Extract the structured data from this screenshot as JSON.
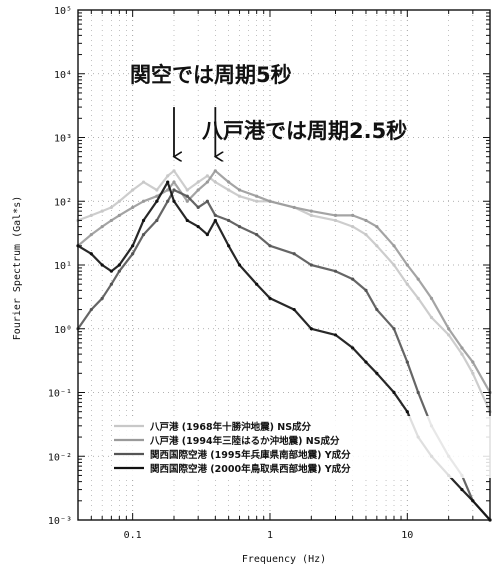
{
  "chart_data": {
    "type": "line",
    "title": "",
    "xlabel": "Frequency (Hz)",
    "ylabel": "Fourier Spectrum (Gal*s)",
    "x_scale": "log",
    "y_scale": "log",
    "xlim": [
      0.04,
      40
    ],
    "ylim": [
      0.001,
      100000
    ],
    "grid": true,
    "x_ticks": [
      {
        "value": 0.1,
        "label": "0.1"
      },
      {
        "value": 1,
        "label": "1"
      },
      {
        "value": 10,
        "label": "10"
      }
    ],
    "y_ticks": [
      {
        "value": 0.001,
        "label": "10⁻³"
      },
      {
        "value": 0.01,
        "label": "10⁻²"
      },
      {
        "value": 0.1,
        "label": "10⁻¹"
      },
      {
        "value": 1,
        "label": "10⁰"
      },
      {
        "value": 10,
        "label": "10¹"
      },
      {
        "value": 100,
        "label": "10²"
      },
      {
        "value": 1000,
        "label": "10³"
      },
      {
        "value": 10000,
        "label": "10⁴"
      },
      {
        "value": 100000,
        "label": "10⁵"
      }
    ],
    "annotations": [
      {
        "text": "関空では周期5秒"
      },
      {
        "text": "八戸港では周期2.5秒"
      }
    ],
    "arrows": [
      {
        "x": 0.2,
        "y_from": 3000,
        "y_to": 500
      },
      {
        "x": 0.4,
        "y_from": 3000,
        "y_to": 500
      }
    ],
    "legend_position": "bottom-right",
    "series": [
      {
        "name": "八戸港 (1968年十勝沖地震) NS成分",
        "color": "#c8c8c8",
        "x": [
          0.04,
          0.05,
          0.06,
          0.07,
          0.08,
          0.1,
          0.12,
          0.15,
          0.18,
          0.2,
          0.25,
          0.3,
          0.35,
          0.4,
          0.5,
          0.6,
          0.8,
          1,
          1.5,
          2,
          3,
          4,
          5,
          6,
          8,
          10,
          12,
          15,
          20,
          25,
          30,
          40
        ],
        "y": [
          50,
          60,
          70,
          80,
          100,
          150,
          200,
          150,
          250,
          300,
          150,
          200,
          250,
          200,
          150,
          120,
          100,
          100,
          80,
          60,
          50,
          40,
          30,
          20,
          10,
          5,
          3,
          1.5,
          0.8,
          0.4,
          0.2,
          0.05
        ]
      },
      {
        "name": "八戸港 (1994年三陸はるか沖地震) NS成分",
        "color": "#9a9a9a",
        "x": [
          0.04,
          0.05,
          0.06,
          0.07,
          0.08,
          0.1,
          0.12,
          0.15,
          0.18,
          0.2,
          0.25,
          0.3,
          0.35,
          0.4,
          0.5,
          0.6,
          0.8,
          1,
          1.5,
          2,
          3,
          4,
          5,
          6,
          8,
          10,
          12,
          15,
          20,
          25,
          30,
          40
        ],
        "y": [
          20,
          30,
          40,
          50,
          60,
          80,
          100,
          120,
          150,
          200,
          100,
          150,
          200,
          300,
          200,
          150,
          120,
          100,
          80,
          70,
          60,
          60,
          50,
          40,
          20,
          10,
          6,
          3,
          1,
          0.5,
          0.3,
          0.1
        ]
      },
      {
        "name": "関西国際空港 (1995年兵庫県南部地震) Y成分",
        "color": "#555555",
        "x": [
          0.04,
          0.05,
          0.06,
          0.07,
          0.08,
          0.1,
          0.12,
          0.15,
          0.18,
          0.2,
          0.25,
          0.3,
          0.35,
          0.4,
          0.5,
          0.6,
          0.8,
          1,
          1.5,
          2,
          3,
          4,
          5,
          6,
          8,
          10,
          12,
          15,
          20,
          25,
          30,
          40
        ],
        "y": [
          1,
          2,
          3,
          5,
          8,
          15,
          30,
          50,
          100,
          150,
          120,
          80,
          100,
          60,
          50,
          40,
          30,
          20,
          15,
          10,
          8,
          6,
          4,
          2,
          1,
          0.3,
          0.1,
          0.03,
          0.01,
          0.005,
          0.002,
          0.001
        ]
      },
      {
        "name": "関西国際空港 (2000年鳥取県西部地震) Y成分",
        "color": "#111111",
        "x": [
          0.04,
          0.05,
          0.06,
          0.07,
          0.08,
          0.1,
          0.12,
          0.15,
          0.18,
          0.2,
          0.25,
          0.3,
          0.35,
          0.4,
          0.5,
          0.6,
          0.8,
          1,
          1.5,
          2,
          3,
          4,
          5,
          6,
          8,
          10,
          12,
          15,
          20,
          25,
          30,
          40
        ],
        "y": [
          20,
          15,
          10,
          8,
          10,
          20,
          50,
          100,
          200,
          100,
          50,
          40,
          30,
          50,
          20,
          10,
          5,
          3,
          2,
          1,
          0.8,
          0.5,
          0.3,
          0.2,
          0.1,
          0.05,
          0.02,
          0.01,
          0.005,
          0.003,
          0.002,
          0.001
        ]
      }
    ]
  }
}
